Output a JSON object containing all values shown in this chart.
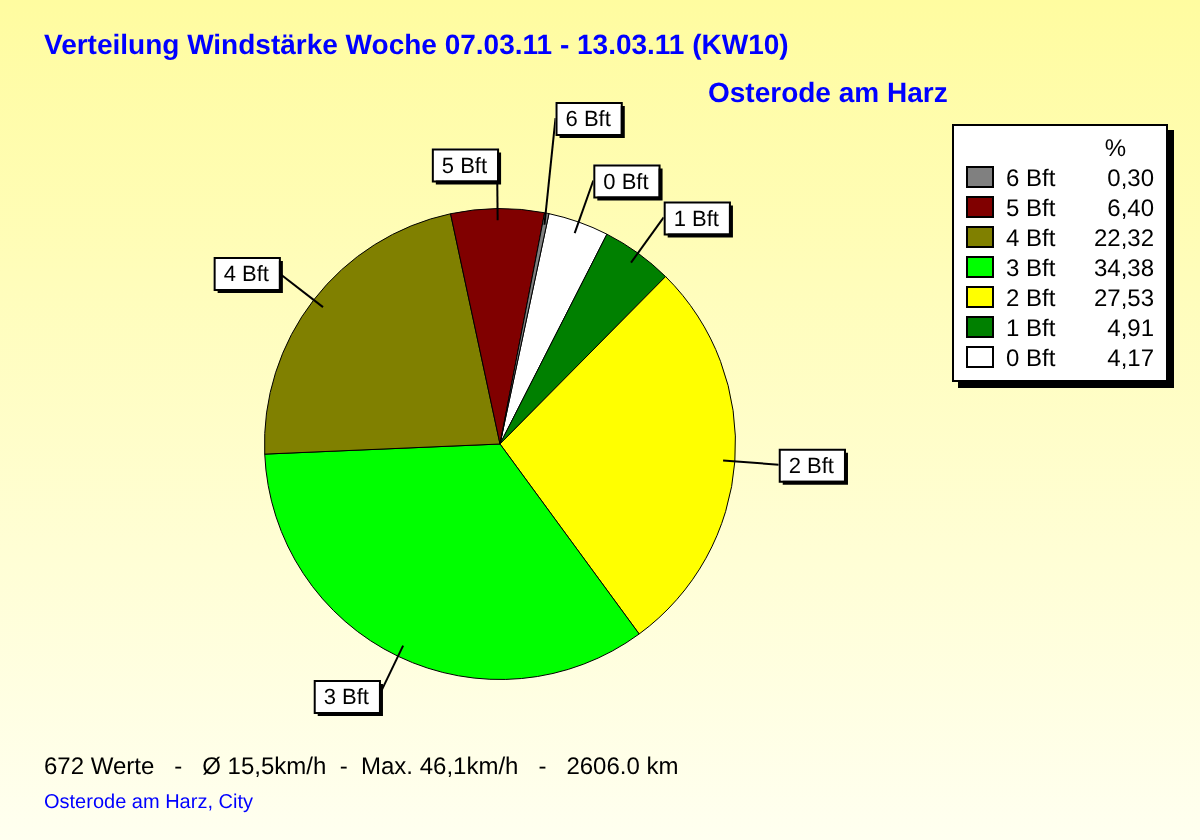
{
  "chart_data": {
    "type": "pie",
    "title": "Verteilung Windstärke  Woche 07.03.11 - 13.03.11 (KW10)",
    "subtitle": "Osterode am Harz",
    "legend_title": "%",
    "legend": "top right",
    "categories": [
      "6 Bft",
      "5 Bft",
      "4 Bft",
      "3 Bft",
      "2 Bft",
      "1 Bft",
      "0 Bft"
    ],
    "values": [
      0.3,
      6.4,
      22.32,
      34.38,
      27.53,
      4.91,
      4.17
    ],
    "value_labels": [
      "0,30",
      "6,40",
      "22,32",
      "34,38",
      "27,53",
      "4,91",
      "4,17"
    ],
    "colors": [
      "#808080",
      "#800000",
      "#808000",
      "#00ff00",
      "#ffff00",
      "#008000",
      "#ffffff"
    ],
    "annotations": [
      "672 Werte   -   Ø 15,5km/h  -  Max. 46,1km/h   -   2606.0 km",
      "Osterode am Harz, City"
    ]
  }
}
